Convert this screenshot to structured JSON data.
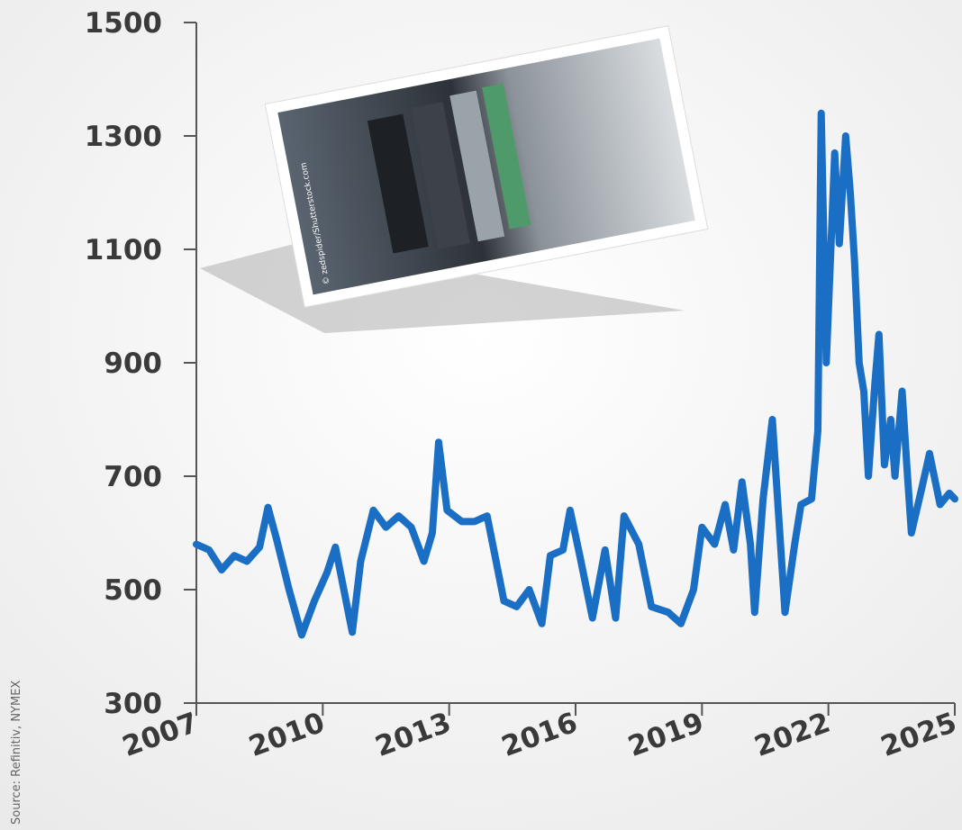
{
  "chart_data": {
    "type": "line",
    "source": "Source: Refinitiv, NYMEX",
    "image_credit": "© zedspider/Shutterstock.com",
    "x": [
      2007.0,
      2007.3,
      2007.6,
      2007.9,
      2008.2,
      2008.5,
      2008.7,
      2008.9,
      2009.2,
      2009.5,
      2009.8,
      2010.1,
      2010.3,
      2010.5,
      2010.7,
      2010.9,
      2011.2,
      2011.5,
      2011.8,
      2012.1,
      2012.4,
      2012.6,
      2012.75,
      2012.95,
      2013.3,
      2013.6,
      2013.9,
      2014.3,
      2014.6,
      2014.9,
      2015.2,
      2015.4,
      2015.7,
      2015.87,
      2016.1,
      2016.4,
      2016.7,
      2016.95,
      2017.15,
      2017.5,
      2017.8,
      2018.2,
      2018.5,
      2018.8,
      2019.0,
      2019.3,
      2019.55,
      2019.75,
      2019.95,
      2020.15,
      2020.25,
      2020.45,
      2020.67,
      2020.97,
      2021.2,
      2021.35,
      2021.6,
      2021.75,
      2021.83,
      2021.95,
      2022.15,
      2022.26,
      2022.41,
      2022.52,
      2022.62,
      2022.73,
      2022.84,
      2022.95,
      2023.1,
      2023.2,
      2023.33,
      2023.48,
      2023.58,
      2023.75,
      2023.86,
      2023.97,
      2024.22,
      2024.4,
      2024.65,
      2024.87,
      2025.0
    ],
    "series": [
      {
        "color": "#1a6fc4",
        "values": [
          580,
          570,
          535,
          560,
          550,
          575,
          645,
          590,
          500,
          420,
          480,
          530,
          575,
          500,
          425,
          550,
          640,
          610,
          630,
          610,
          550,
          600,
          760,
          640,
          620,
          620,
          630,
          480,
          470,
          500,
          440,
          560,
          570,
          640,
          560,
          450,
          570,
          450,
          630,
          580,
          470,
          460,
          440,
          500,
          610,
          580,
          650,
          570,
          690,
          580,
          460,
          660,
          800,
          460,
          580,
          650,
          660,
          780,
          1340,
          900,
          1270,
          1110,
          1300,
          1200,
          1080,
          900,
          850,
          700,
          860,
          950,
          720,
          800,
          700,
          850,
          720,
          600,
          680,
          740,
          650,
          670,
          660
        ]
      }
    ],
    "xlim": [
      2007,
      2025
    ],
    "xticks": [
      2007,
      2010,
      2013,
      2016,
      2019,
      2022,
      2025
    ],
    "ylim": [
      300,
      1500
    ],
    "yticks": [
      300,
      500,
      700,
      900,
      1100,
      1300,
      1500
    ]
  }
}
